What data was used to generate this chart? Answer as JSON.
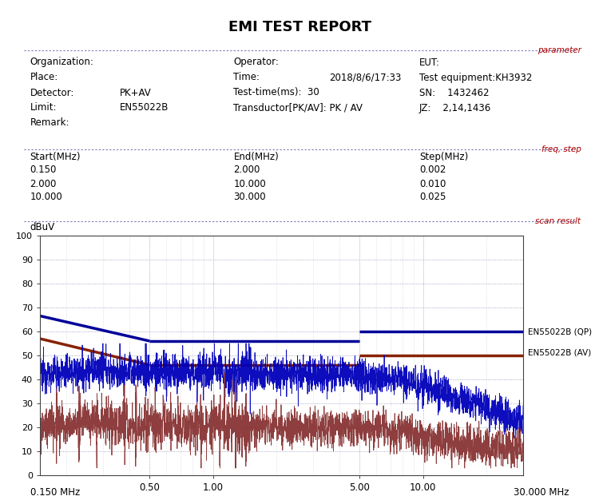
{
  "title": "EMI TEST REPORT",
  "title_fontsize": 13,
  "background_color": "#ffffff",
  "red_color": "#aa0000",
  "black_color": "#000000",
  "blue_color": "#5555aa",
  "section_labels": [
    "parameter",
    "freq, step",
    "scan result"
  ],
  "param_rows": [
    [
      "Organization:",
      "",
      "Operator:",
      "",
      "EUT:"
    ],
    [
      "Place:",
      "",
      "Time:",
      "2018/8/6/17:33",
      "Test equipment:KH3932"
    ],
    [
      "Detector:",
      "PK+AV",
      "Test-time(ms):  30",
      "",
      "SN:    1432462"
    ],
    [
      "Limit:",
      "EN55022B",
      "Transductor[PK/AV]: PK / AV",
      "",
      "JZ:    2,14,1436"
    ],
    [
      "Remark:",
      "",
      "",
      "",
      ""
    ]
  ],
  "freq_headers": [
    "Start(MHz)",
    "End(MHz)",
    "Step(MHz)"
  ],
  "freq_rows": [
    [
      "0.150",
      "2.000",
      "0.002"
    ],
    [
      "2.000",
      "10.000",
      "0.010"
    ],
    [
      "10.000",
      "30.000",
      "0.025"
    ]
  ],
  "ylabel": "dBuV",
  "xlabel_left": "0.150 MHz",
  "xlabel_right": "30.000 MHz",
  "ylim": [
    0,
    100
  ],
  "yticks": [
    0,
    10,
    20,
    30,
    40,
    50,
    60,
    70,
    80,
    90,
    100
  ],
  "grid_color": "#8888aa",
  "plot_bg_color": "#ffffff",
  "limit_qp_color": "#000099",
  "limit_av_color": "#882200",
  "meas_pk_color": "#0000bb",
  "meas_av_color": "#883333",
  "legend_qp": "EN55022B (QP)",
  "legend_av": "EN55022B (AV)",
  "limit_qp_segments": [
    {
      "x": [
        0.15,
        0.5
      ],
      "y": [
        66.5,
        56.0
      ]
    },
    {
      "x": [
        0.5,
        5.0
      ],
      "y": [
        56.0,
        56.0
      ]
    },
    {
      "x": [
        5.0,
        30.0
      ],
      "y": [
        60.0,
        60.0
      ]
    }
  ],
  "limit_av_segments": [
    {
      "x": [
        0.15,
        0.5
      ],
      "y": [
        57.0,
        46.0
      ]
    },
    {
      "x": [
        0.5,
        5.0
      ],
      "y": [
        46.0,
        46.0
      ]
    },
    {
      "x": [
        5.0,
        30.0
      ],
      "y": [
        50.0,
        50.0
      ]
    }
  ]
}
